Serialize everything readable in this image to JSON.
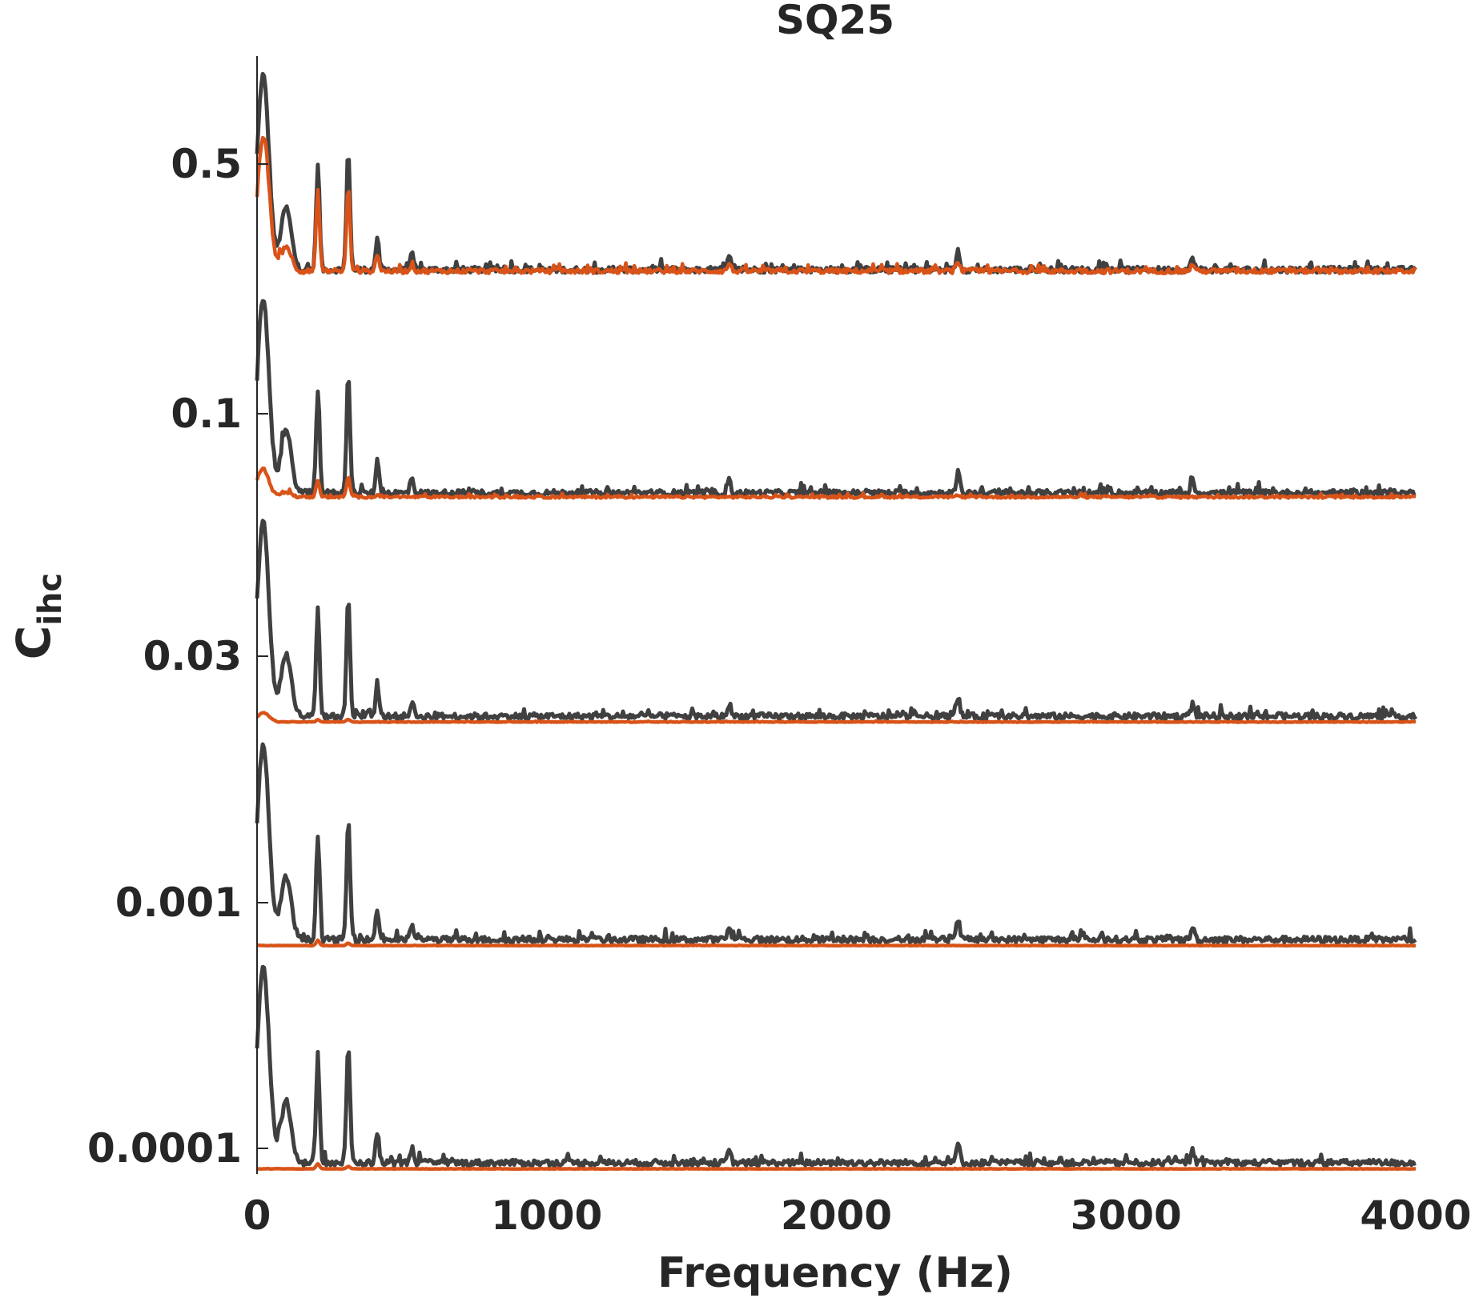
{
  "chart_data": {
    "type": "line",
    "title": "SQ25",
    "xlabel": "Frequency (Hz)",
    "ylabel": "C",
    "ylabel_subscript": "ihc",
    "xlim": [
      0,
      4000
    ],
    "x_ticks": [
      0,
      1000,
      2000,
      3000,
      4000
    ],
    "x_tick_labels": [
      "0",
      "1000",
      "2000",
      "3000",
      "4000"
    ],
    "y_tick_labels": [
      "0.5",
      "0.1",
      "0.03",
      "0.001",
      "0.0001"
    ],
    "grid": false,
    "legend": "none",
    "colors": {
      "dark_series": "#404040",
      "orange_series": "#d95319",
      "axis": "#262626"
    },
    "peaks_hz": [
      0,
      15,
      30,
      100,
      210,
      315,
      415,
      535,
      1630,
      2420,
      3230
    ],
    "panels": [
      {
        "label": "0.5",
        "series": [
          {
            "color": "dark_series",
            "peak_heights": [
              0.05,
              0.45,
              0.38,
              0.25,
              0.42,
              0.48,
              0.12,
              0.06,
              0.05,
              0.08,
              0.05
            ],
            "noise": 0.038
          },
          {
            "color": "orange_series",
            "peak_heights": [
              0.03,
              0.28,
              0.3,
              0.1,
              0.32,
              0.34,
              0.07,
              0.03,
              0.03,
              0.04,
              0.03
            ],
            "noise": 0.03
          }
        ]
      },
      {
        "label": "0.1",
        "series": [
          {
            "color": "dark_series",
            "peak_heights": [
              0.05,
              0.45,
              0.38,
              0.25,
              0.42,
              0.48,
              0.12,
              0.06,
              0.05,
              0.08,
              0.05
            ],
            "noise": 0.038
          },
          {
            "color": "orange_series",
            "peak_heights": [
              0.01,
              0.07,
              0.05,
              0.02,
              0.07,
              0.08,
              0.01,
              0.0,
              0.0,
              0.01,
              0.0
            ],
            "noise": 0.014
          }
        ]
      },
      {
        "label": "0.03",
        "series": [
          {
            "color": "dark_series",
            "peak_heights": [
              0.05,
              0.45,
              0.38,
              0.25,
              0.42,
              0.48,
              0.12,
              0.06,
              0.05,
              0.08,
              0.05
            ],
            "noise": 0.038
          },
          {
            "color": "orange_series",
            "peak_heights": [
              0.0,
              0.02,
              0.02,
              0.0,
              0.01,
              0.01,
              0.0,
              0.0,
              0.0,
              0.0,
              0.0
            ],
            "noise": 0.004
          }
        ]
      },
      {
        "label": "0.001",
        "series": [
          {
            "color": "dark_series",
            "peak_heights": [
              0.05,
              0.45,
              0.38,
              0.25,
              0.42,
              0.48,
              0.12,
              0.06,
              0.05,
              0.08,
              0.05
            ],
            "noise": 0.038
          },
          {
            "color": "orange_series",
            "peak_heights": [
              0.0,
              0.0,
              0.0,
              0.0,
              0.02,
              0.01,
              0.0,
              0.0,
              0.0,
              0.0,
              0.0
            ],
            "noise": 0.002
          }
        ]
      },
      {
        "label": "0.0001",
        "series": [
          {
            "color": "dark_series",
            "peak_heights": [
              0.05,
              0.45,
              0.38,
              0.25,
              0.42,
              0.48,
              0.12,
              0.06,
              0.05,
              0.08,
              0.05
            ],
            "noise": 0.038
          },
          {
            "color": "orange_series",
            "peak_heights": [
              0.0,
              0.0,
              0.0,
              0.0,
              0.02,
              0.01,
              0.0,
              0.0,
              0.0,
              0.0,
              0.0
            ],
            "noise": 0.002
          }
        ]
      }
    ]
  }
}
